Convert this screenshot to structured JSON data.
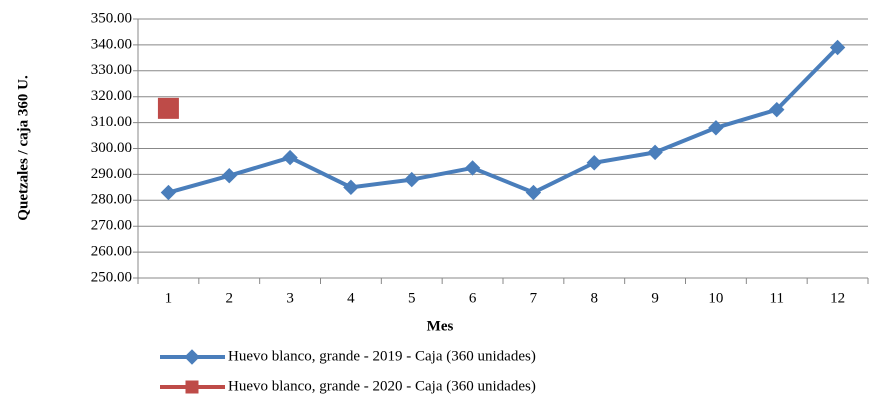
{
  "chart_data": {
    "type": "line",
    "x_label": "Mes",
    "y_label": "Quetzales / caja 360 U.",
    "categories": [
      "1",
      "2",
      "3",
      "4",
      "5",
      "6",
      "7",
      "8",
      "9",
      "10",
      "11",
      "12"
    ],
    "series": [
      {
        "name": "Huevo blanco, grande - 2019 - Caja (360 unidades)",
        "color": "#4a7ebb",
        "marker": "diamond",
        "values": [
          283,
          289.5,
          296.5,
          285,
          288,
          292.5,
          283,
          294.5,
          298.5,
          308,
          315,
          339
        ]
      },
      {
        "name": "Huevo blanco, grande - 2020 - Caja (360 unidades)",
        "color": "#be4b48",
        "marker": "square",
        "values": [
          315.5,
          null,
          null,
          null,
          null,
          null,
          null,
          null,
          null,
          null,
          null,
          null
        ]
      }
    ],
    "ylim": [
      250,
      350
    ],
    "yticks": [
      {
        "value": 250,
        "label": "250.00"
      },
      {
        "value": 260,
        "label": "260.00"
      },
      {
        "value": 270,
        "label": "270.00"
      },
      {
        "value": 280,
        "label": "280.00"
      },
      {
        "value": 290,
        "label": "290.00"
      },
      {
        "value": 300,
        "label": "300.00"
      },
      {
        "value": 310,
        "label": "310.00"
      },
      {
        "value": 320,
        "label": "320.00"
      },
      {
        "value": 330,
        "label": "330.00"
      },
      {
        "value": 340,
        "label": "340.00"
      },
      {
        "value": 350,
        "label": "350.00"
      }
    ],
    "grid": true,
    "legend": "bottom"
  }
}
